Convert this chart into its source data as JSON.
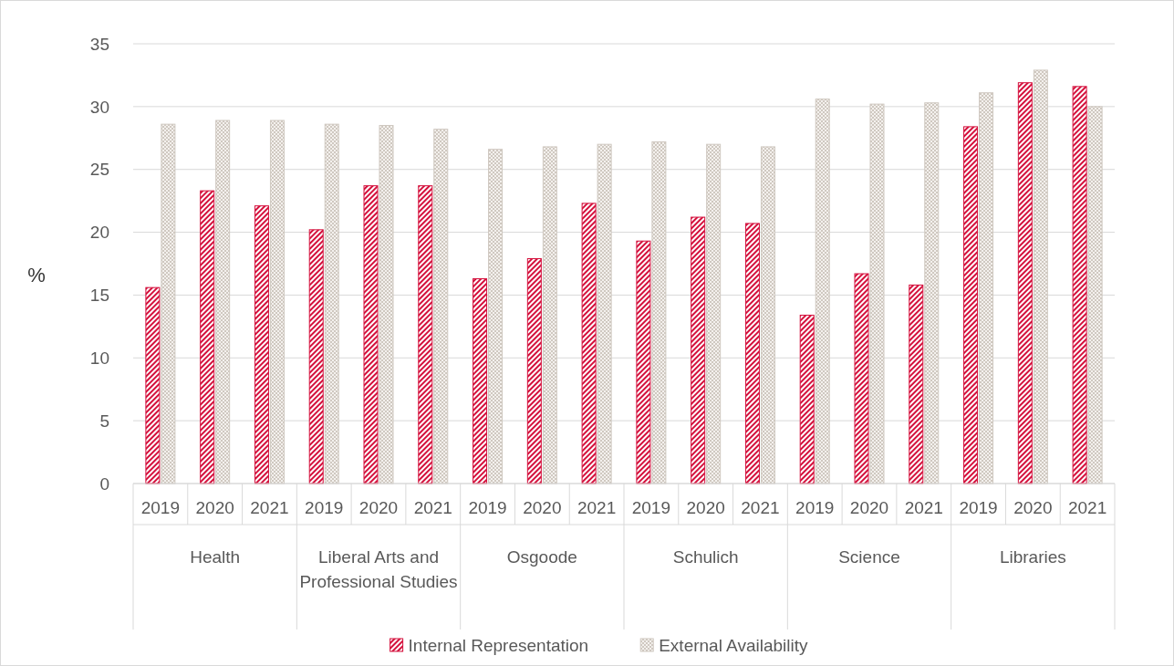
{
  "chart_data": {
    "type": "bar",
    "ylabel": "%",
    "categories": [
      "2019",
      "2020",
      "2021",
      "2019",
      "2020",
      "2021",
      "2019",
      "2020",
      "2021",
      "2019",
      "2020",
      "2021",
      "2019",
      "2020",
      "2021",
      "2019",
      "2020",
      "2021"
    ],
    "annotations": [
      "Health",
      "Liberal Arts and Professional Studies",
      "Osgoode",
      "Schulich",
      "Science",
      "Libraries"
    ],
    "series": [
      {
        "name": "Internal Representation",
        "color": "#d4103c",
        "values": [
          15.6,
          23.3,
          22.1,
          20.2,
          23.7,
          23.7,
          16.3,
          17.9,
          22.3,
          19.3,
          21.2,
          20.7,
          13.4,
          16.7,
          15.8,
          28.4,
          31.9,
          31.6
        ]
      },
      {
        "name": "External Availability",
        "color": "#cfc8c0",
        "values": [
          28.6,
          28.9,
          28.9,
          28.6,
          28.5,
          28.2,
          26.6,
          26.8,
          27.0,
          27.2,
          27.0,
          26.8,
          30.6,
          30.2,
          30.3,
          31.1,
          32.9,
          30.0
        ]
      }
    ],
    "ylim": [
      0,
      35
    ],
    "yticks": [
      0,
      5,
      10,
      15,
      20,
      25,
      30,
      35
    ],
    "grid": "y",
    "legend": "bottom"
  }
}
